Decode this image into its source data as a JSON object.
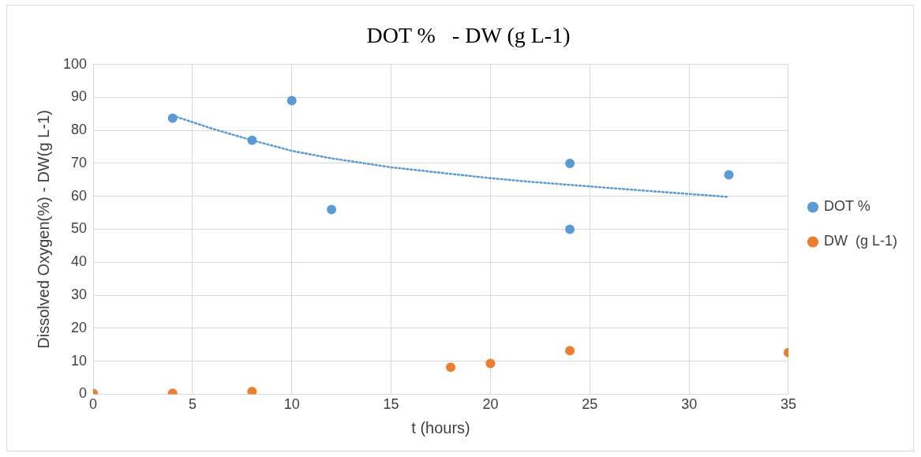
{
  "chart_data": {
    "type": "scatter",
    "title": "DOT %   - DW (g L-1)",
    "xlabel": "t (hours)",
    "ylabel": "Dissolved Oxygen(%) - DW(g L-1)",
    "xlim": [
      0,
      35
    ],
    "xticks": [
      0,
      5,
      10,
      15,
      20,
      25,
      30,
      35
    ],
    "ylim": [
      0,
      100
    ],
    "yticks": [
      0,
      10,
      20,
      30,
      40,
      50,
      60,
      70,
      80,
      90,
      100
    ],
    "grid": true,
    "legend": "right",
    "series": [
      {
        "name": "DOT %",
        "color": "#5b9bd5",
        "marker": "circle",
        "x": [
          4,
          8,
          10,
          12,
          24,
          24,
          32
        ],
        "values": [
          83.7,
          77,
          89,
          56,
          70,
          50,
          66.5
        ]
      },
      {
        "name": "DW  (g L-1)",
        "color": "#ed7d31",
        "marker": "circle",
        "x": [
          0,
          4,
          8,
          18,
          20,
          24,
          35
        ],
        "values": [
          0.2,
          0.3,
          0.8,
          8.2,
          9.3,
          13.2,
          12.6
        ]
      },
      {
        "type": "line",
        "color": "#5b9bd5",
        "marker": "none",
        "line_style": "dotted",
        "x": [
          4,
          6,
          8,
          10,
          12,
          15,
          18,
          20,
          22,
          25,
          28,
          30,
          32
        ],
        "values": [
          84.5,
          80.5,
          77,
          73.8,
          71.5,
          68.8,
          66.8,
          65.5,
          64.4,
          63,
          61.6,
          60.7,
          59.8
        ]
      }
    ]
  }
}
